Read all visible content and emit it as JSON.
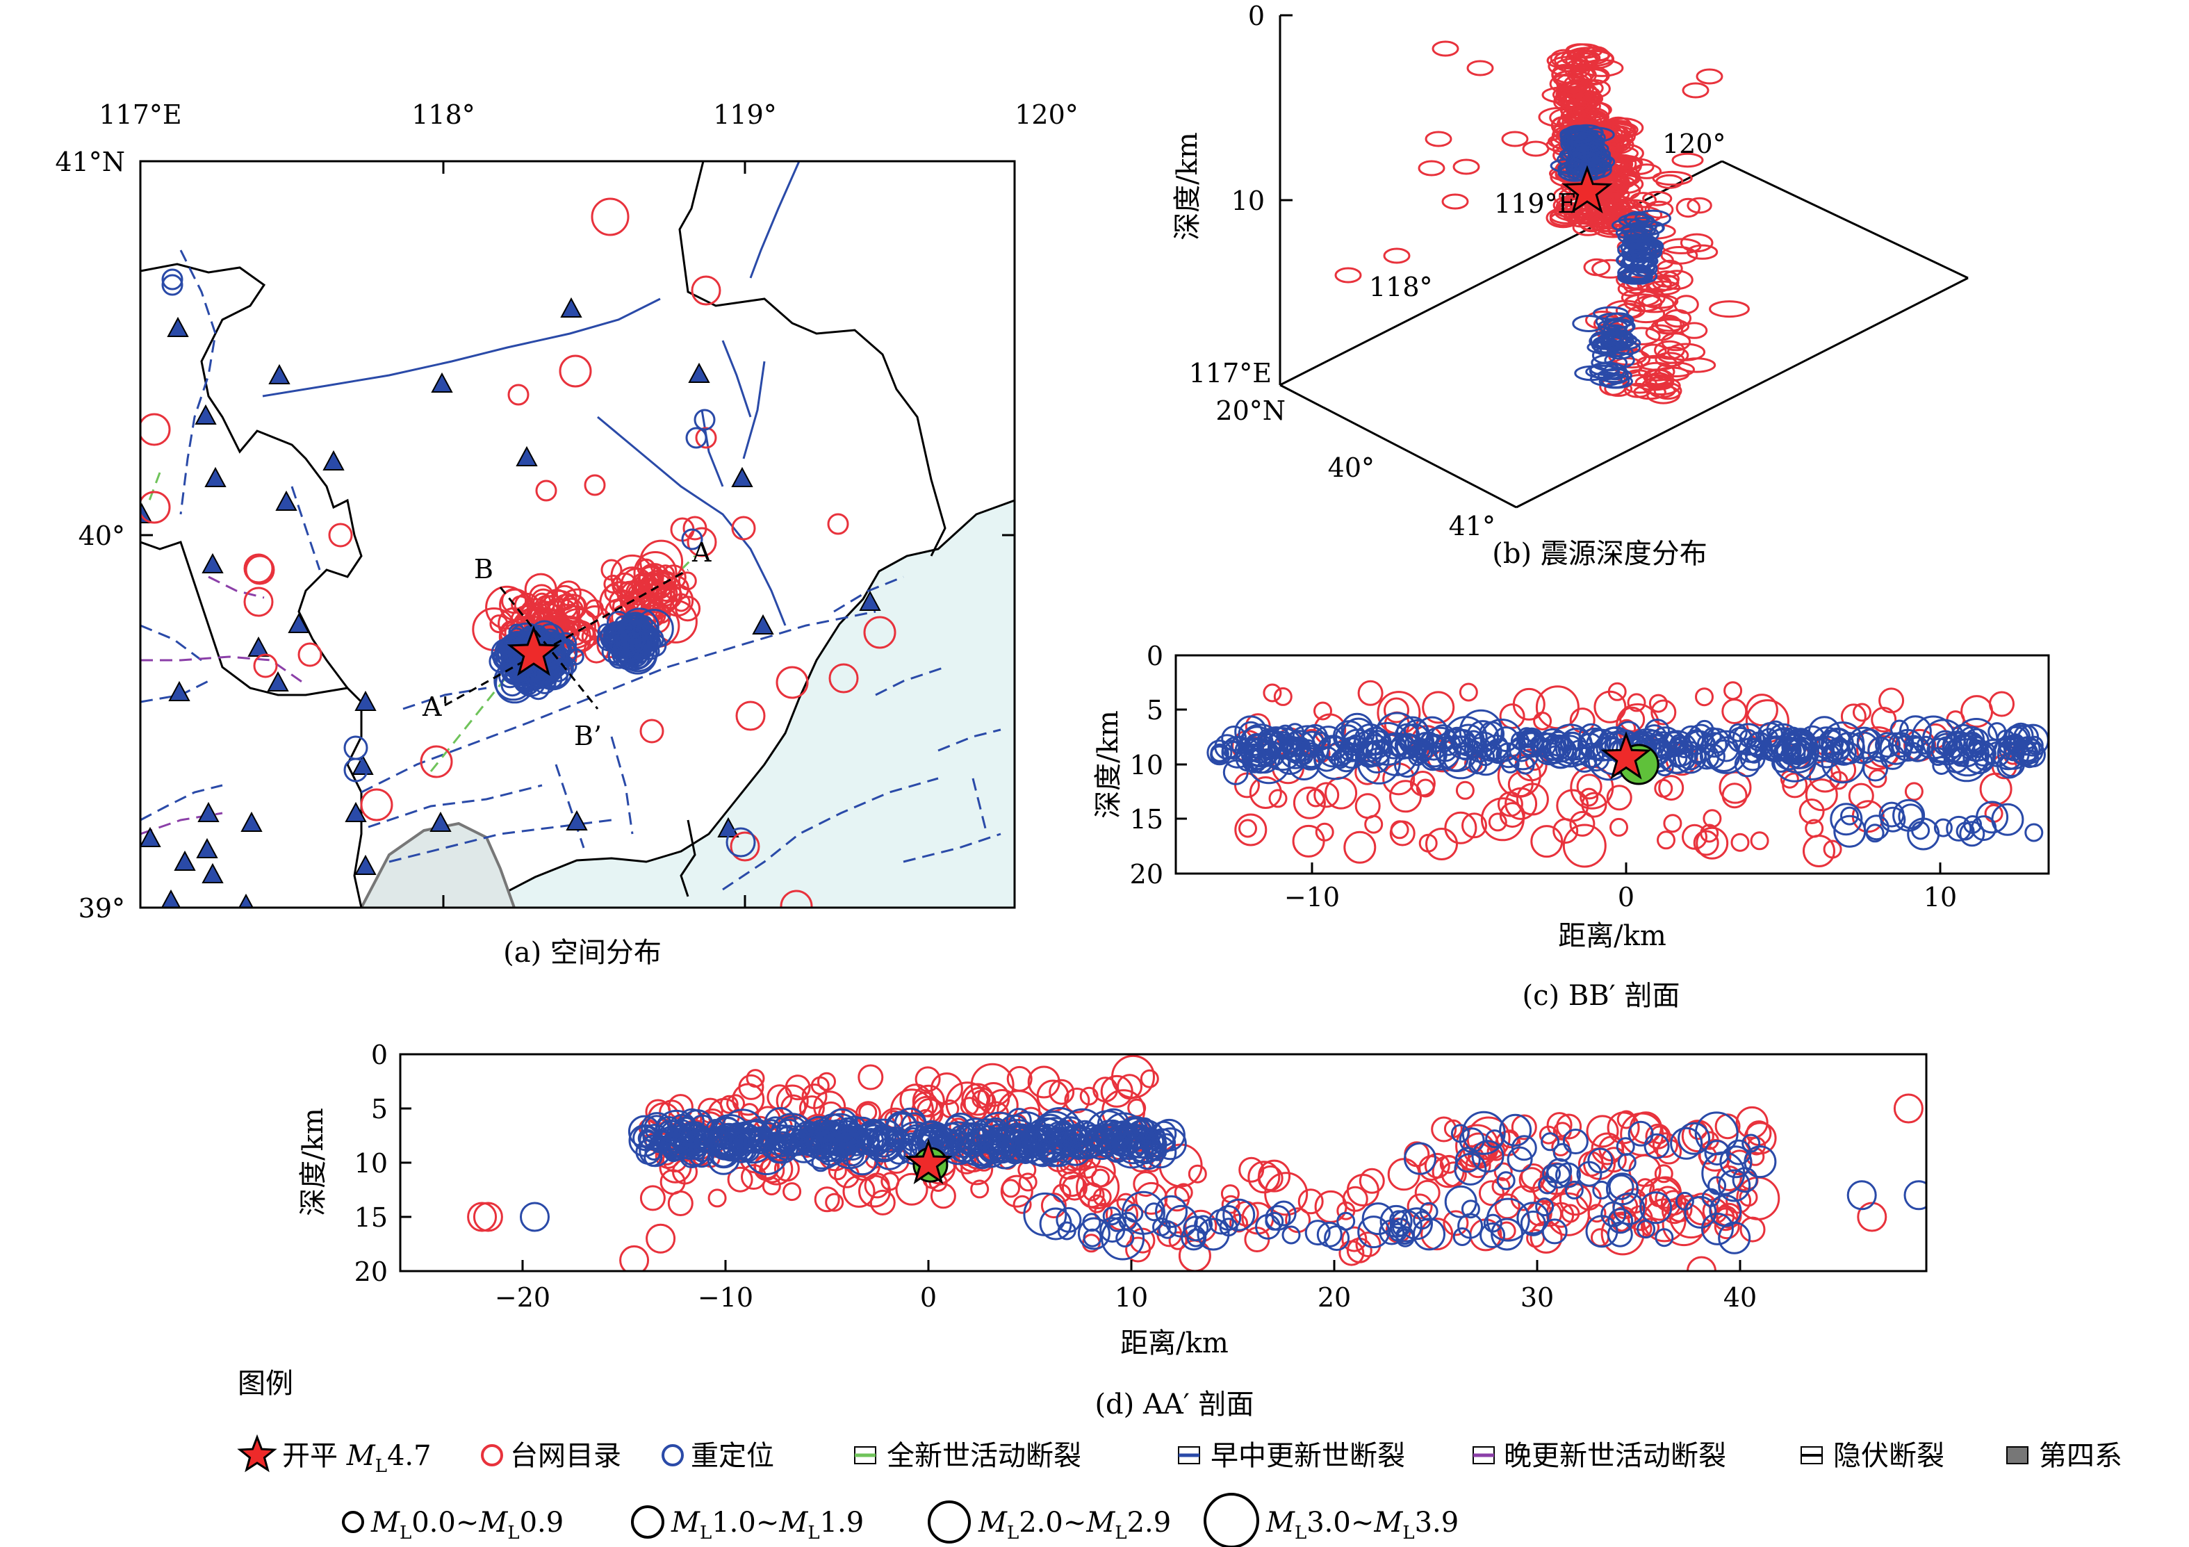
{
  "panel_a": {
    "caption": "(a) 空间分布",
    "lon_ticks": [
      "117°E",
      "118°",
      "119°",
      "120°"
    ],
    "lat_ticks": [
      "41°N",
      "40°",
      "39°"
    ],
    "lon_values": [
      117,
      118,
      119,
      120
    ],
    "lat_values": [
      41,
      40,
      39
    ],
    "profile_labels": {
      "a": "A",
      "a_prime": "A'",
      "b": "B",
      "b_prime": "B’"
    }
  },
  "panel_b": {
    "caption": "(b) 震源深度分布",
    "depth_label": "深度/km",
    "depth_ticks": [
      "0",
      "10"
    ],
    "lon_ticks": [
      "117°E",
      "118°",
      "119°E",
      "120°"
    ],
    "lat_ticks": [
      "20°N",
      "40°",
      "41°"
    ]
  },
  "panel_c": {
    "caption": "(c) BB′ 剖面",
    "xlabel": "距离/km",
    "ylabel": "深度/km",
    "xticks": [
      "−10",
      "0",
      "10"
    ],
    "yticks": [
      "0",
      "5",
      "10",
      "15",
      "20"
    ]
  },
  "panel_d": {
    "caption": "(d) AA′ 剖面",
    "xlabel": "距离/km",
    "ylabel": "深度/km",
    "xticks": [
      "−20",
      "−10",
      "0",
      "10",
      "20",
      "30",
      "40"
    ],
    "yticks": [
      "0",
      "5",
      "10",
      "15",
      "20"
    ]
  },
  "legend": {
    "title": "图例",
    "mainshock_prefix": "开平 ",
    "mainshock_M": "M",
    "mainshock_sub": "L",
    "mainshock_mag": "4.7",
    "catalog": "台网目录",
    "relocated": "重定位",
    "holocene": "全新世活动断裂",
    "early_mid_pleistocene": "早中更新世断裂",
    "late_pleistocene": "晚更新世活动断裂",
    "buried": "隐伏断裂",
    "quaternary": "第四系",
    "mag_classes": [
      {
        "pre": "M",
        "sub": "L",
        "a": "0.0~",
        "pre2": "M",
        "sub2": "L",
        "b": "0.9"
      },
      {
        "pre": "M",
        "sub": "L",
        "a": "1.0~",
        "pre2": "M",
        "sub2": "L",
        "b": "1.9"
      },
      {
        "pre": "M",
        "sub": "L",
        "a": "2.0~",
        "pre2": "M",
        "sub2": "L",
        "b": "2.9"
      },
      {
        "pre": "M",
        "sub": "L",
        "a": "3.0~",
        "pre2": "M",
        "sub2": "L",
        "b": "3.9"
      }
    ]
  },
  "colors": {
    "catalog": "#e8323c",
    "relocated": "#2a4aa8",
    "star": "#ee2a2a",
    "green": "#5fc13a",
    "sea": "#e6f4f4",
    "fault": "#2a4aa8",
    "late_fault": "#8b3fa8",
    "holocene_fault": "#6fc35a",
    "station": "#2a4aa8"
  }
}
